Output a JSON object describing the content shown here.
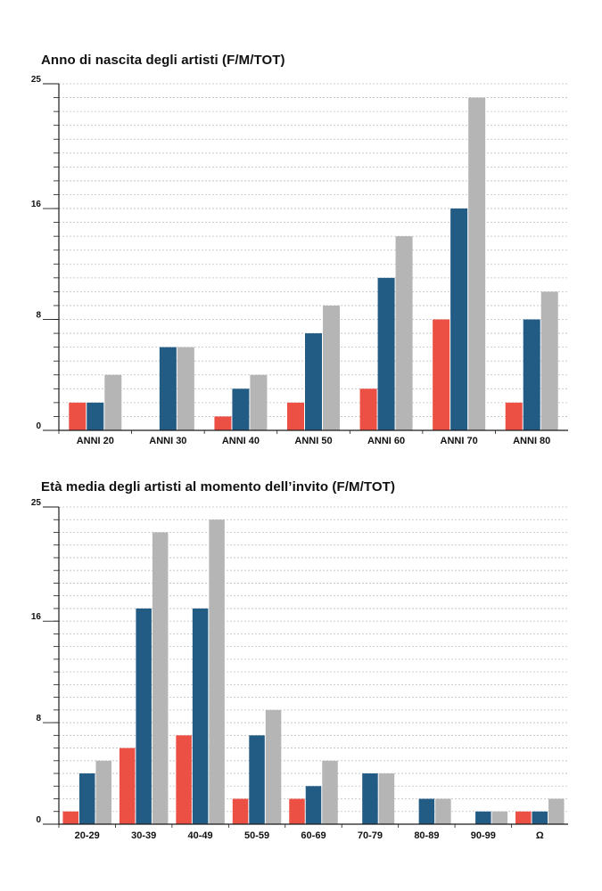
{
  "colors": {
    "F": "#ec5044",
    "M": "#225b84",
    "TOT": "#b5b5b5",
    "axis": "#1a1a1a",
    "grid": "#bfbfbf"
  },
  "chart_data": [
    {
      "type": "bar",
      "title": "Anno di nascita degli artisti (F/M/TOT)",
      "categories": [
        "ANNI 20",
        "ANNI 30",
        "ANNI 40",
        "ANNI 50",
        "ANNI 60",
        "ANNI 70",
        "ANNI 80"
      ],
      "series": [
        {
          "key": "F",
          "values": [
            2,
            0,
            1,
            2,
            3,
            8,
            2
          ]
        },
        {
          "key": "M",
          "values": [
            2,
            6,
            3,
            7,
            11,
            16,
            8
          ]
        },
        {
          "key": "TOT",
          "values": [
            4,
            6,
            4,
            9,
            14,
            24,
            10
          ]
        }
      ],
      "yticks": [
        0,
        8,
        16,
        25
      ],
      "ylim": [
        0,
        25
      ],
      "grid": true,
      "xlabel": "",
      "ylabel": ""
    },
    {
      "type": "bar",
      "title": "Età media degli artisti al momento dell’invito (F/M/TOT)",
      "categories": [
        "20-29",
        "30-39",
        "40-49",
        "50-59",
        "60-69",
        "70-79",
        "80-89",
        "90-99",
        "Ω"
      ],
      "series": [
        {
          "key": "F",
          "values": [
            1,
            6,
            7,
            2,
            2,
            0,
            0,
            0,
            1
          ]
        },
        {
          "key": "M",
          "values": [
            4,
            17,
            17,
            7,
            3,
            4,
            2,
            1,
            1
          ]
        },
        {
          "key": "TOT",
          "values": [
            5,
            23,
            24,
            9,
            5,
            4,
            2,
            1,
            2
          ]
        }
      ],
      "yticks": [
        0,
        8,
        16,
        25
      ],
      "ylim": [
        0,
        25
      ],
      "grid": true,
      "xlabel": "",
      "ylabel": ""
    }
  ]
}
